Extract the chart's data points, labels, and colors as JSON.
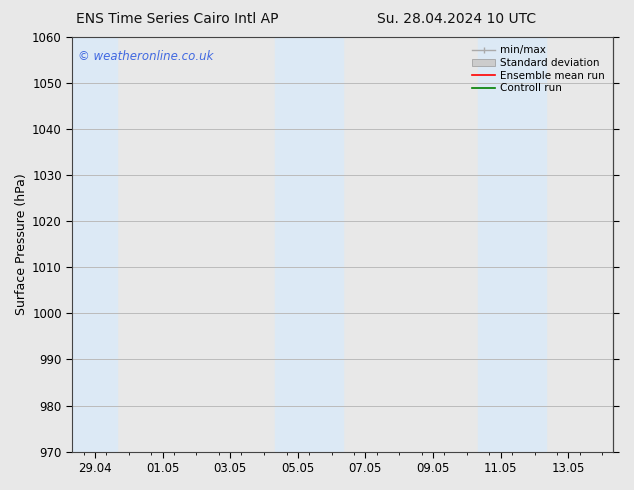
{
  "title_left": "ENS Time Series Cairo Intl AP",
  "title_right": "Su. 28.04.2024 10 UTC",
  "ylabel": "Surface Pressure (hPa)",
  "ylim": [
    970,
    1060
  ],
  "yticks": [
    970,
    980,
    990,
    1000,
    1010,
    1020,
    1030,
    1040,
    1050,
    1060
  ],
  "xtick_labels": [
    "29.04",
    "01.05",
    "03.05",
    "05.05",
    "07.05",
    "09.05",
    "11.05",
    "13.05"
  ],
  "xtick_positions": [
    0.5,
    3.5,
    6.5,
    9.5,
    12.5,
    15.5,
    18.5,
    21.5
  ],
  "xlim": [
    -0.5,
    23.5
  ],
  "shaded_bands": [
    {
      "x_start": -0.5,
      "x_end": 1.5,
      "color": "#dce9f5"
    },
    {
      "x_start": 8.5,
      "x_end": 11.5,
      "color": "#dce9f5"
    },
    {
      "x_start": 17.5,
      "x_end": 20.5,
      "color": "#dce9f5"
    }
  ],
  "watermark": "© weatheronline.co.uk",
  "watermark_color": "#4169E1",
  "legend_entries": [
    {
      "label": "min/max",
      "color": "#aaaaaa"
    },
    {
      "label": "Standard deviation",
      "color": "#cccccc"
    },
    {
      "label": "Ensemble mean run",
      "color": "red"
    },
    {
      "label": "Controll run",
      "color": "green"
    }
  ],
  "bg_color": "#e8e8e8",
  "plot_bg_color": "#e8e8e8",
  "grid_color": "#bbbbbb",
  "title_fontsize": 10,
  "tick_fontsize": 8.5,
  "ylabel_fontsize": 9,
  "legend_fontsize": 7.5
}
